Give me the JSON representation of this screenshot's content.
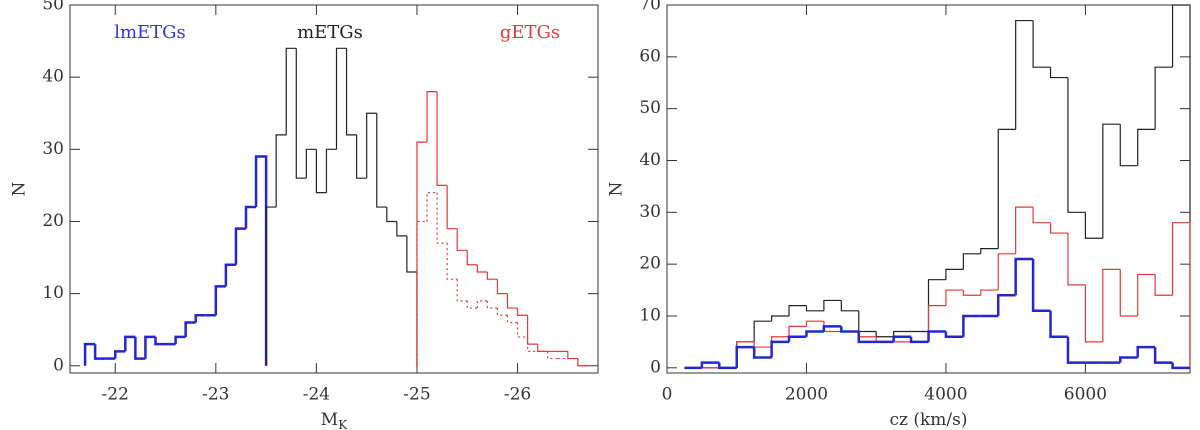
{
  "chart_data": [
    {
      "type": "histogram",
      "xlabel": "M",
      "xlabel_sub": "K",
      "ylabel": "N",
      "xlim": [
        -21.55,
        -26.8
      ],
      "ylim": [
        -1,
        50
      ],
      "xticks": [
        -22,
        -23,
        -24,
        -25,
        -26
      ],
      "yticks": [
        0,
        10,
        20,
        30,
        40,
        50
      ],
      "annotations": [
        {
          "text": "lmETGs",
          "color": "#3333dd"
        },
        {
          "text": "mETGs",
          "color": "#222222"
        },
        {
          "text": "gETGs",
          "color": "#e03a3a"
        }
      ],
      "series": [
        {
          "color": "#2626d0",
          "width": 2.5,
          "dash": "solid",
          "bins": [
            -21.7,
            -21.8,
            -21.9,
            -22.0,
            -22.1,
            -22.2,
            -22.3,
            -22.4,
            -22.5,
            -22.6,
            -22.7,
            -22.8,
            -22.9,
            -23.0,
            -23.1,
            -23.2,
            -23.3,
            -23.4,
            -23.5
          ],
          "values": [
            3,
            1,
            1,
            2,
            4,
            1,
            4,
            3,
            3,
            4,
            6,
            7,
            7,
            11,
            14,
            19,
            22,
            29
          ]
        },
        {
          "color": "#222222",
          "width": 1.2,
          "dash": "solid",
          "bins": [
            -23.5,
            -23.6,
            -23.7,
            -23.8,
            -23.9,
            -24.0,
            -24.1,
            -24.2,
            -24.3,
            -24.4,
            -24.5,
            -24.6,
            -24.7,
            -24.8,
            -24.9,
            -25.0
          ],
          "values": [
            22,
            32,
            44,
            26,
            30,
            24,
            30,
            44,
            32,
            26,
            35,
            22,
            20,
            18,
            13
          ]
        },
        {
          "color": "#e03a3a",
          "width": 1.2,
          "dash": "solid",
          "bins": [
            -25.0,
            -25.1,
            -25.2,
            -25.3,
            -25.4,
            -25.5,
            -25.6,
            -25.7,
            -25.8,
            -25.9,
            -26.0,
            -26.1,
            -26.2,
            -26.3,
            -26.4,
            -26.5,
            -26.6,
            -26.7
          ],
          "values": [
            31,
            38,
            25,
            19,
            16,
            14,
            13,
            12,
            10,
            8,
            7,
            3,
            2,
            2,
            2,
            1,
            0
          ]
        },
        {
          "color": "#e03a3a",
          "width": 1.2,
          "dash": "dotted",
          "bins": [
            -25.0,
            -25.1,
            -25.2,
            -25.3,
            -25.4,
            -25.5,
            -25.6,
            -25.7,
            -25.8,
            -25.9,
            -26.0,
            -26.1,
            -26.2,
            -26.3,
            -26.4,
            -26.5,
            -26.6,
            -26.7
          ],
          "values": [
            20,
            24,
            17,
            12,
            9,
            8,
            9,
            8,
            7,
            6,
            4,
            2,
            2,
            1,
            1,
            1,
            0
          ]
        }
      ]
    },
    {
      "type": "histogram",
      "xlabel": "cz (km/s)",
      "ylabel": "N",
      "xlim": [
        0,
        7500
      ],
      "ylim": [
        -1,
        70
      ],
      "xticks": [
        0,
        2000,
        4000,
        6000
      ],
      "yticks": [
        0,
        10,
        20,
        30,
        40,
        50,
        60,
        70
      ],
      "series": [
        {
          "color": "#222222",
          "width": 1.2,
          "dash": "solid",
          "bins": [
            250,
            500,
            750,
            1000,
            1250,
            1500,
            1750,
            2000,
            2250,
            2500,
            2750,
            3000,
            3250,
            3500,
            3750,
            4000,
            4250,
            4500,
            4750,
            5000,
            5250,
            5500,
            5750,
            6000,
            6250,
            6500,
            6750,
            7000,
            7250,
            7500
          ],
          "values": [
            0,
            0,
            0,
            5,
            9,
            10,
            12,
            11,
            13,
            11,
            7,
            6,
            7,
            7,
            17,
            19,
            22,
            23,
            46,
            67,
            58,
            56,
            30,
            25,
            47,
            39,
            46,
            58,
            70
          ]
        },
        {
          "color": "#e03a3a",
          "width": 1.2,
          "dash": "solid",
          "bins": [
            250,
            500,
            750,
            1000,
            1250,
            1500,
            1750,
            2000,
            2250,
            2500,
            2750,
            3000,
            3250,
            3500,
            3750,
            4000,
            4250,
            4500,
            4750,
            5000,
            5250,
            5500,
            5750,
            6000,
            6250,
            6500,
            6750,
            7000,
            7250,
            7500
          ],
          "values": [
            0,
            0,
            0,
            5,
            4,
            6,
            8,
            9,
            7,
            7,
            6,
            5,
            5,
            5,
            12,
            15,
            14,
            15,
            22,
            31,
            28,
            26,
            16,
            5,
            19,
            10,
            18,
            14,
            28
          ]
        },
        {
          "color": "#2626d0",
          "width": 2.5,
          "dash": "solid",
          "bins": [
            250,
            500,
            750,
            1000,
            1250,
            1500,
            1750,
            2000,
            2250,
            2500,
            2750,
            3000,
            3250,
            3500,
            3750,
            4000,
            4250,
            4500,
            4750,
            5000,
            5250,
            5500,
            5750,
            6000,
            6250,
            6500,
            6750,
            7000,
            7250,
            7500
          ],
          "values": [
            0,
            1,
            0,
            4,
            2,
            5,
            6,
            7,
            8,
            7,
            5,
            5,
            6,
            5,
            7,
            6,
            10,
            10,
            14,
            21,
            11,
            6,
            1,
            1,
            1,
            2,
            4,
            1,
            0
          ]
        }
      ]
    }
  ]
}
